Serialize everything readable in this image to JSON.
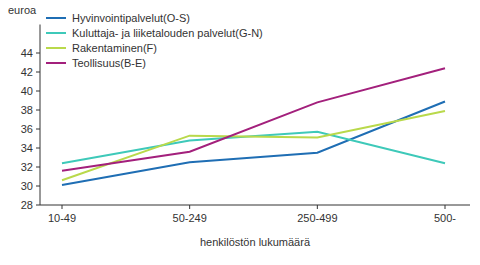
{
  "chart_data": {
    "type": "line",
    "y_label": "euroa",
    "x_label": "henkilöstön lukumäärä",
    "categories": [
      "10-49",
      "50-249",
      "250-499",
      "500-"
    ],
    "series": [
      {
        "name": "Hyvinvointipalvelut(O-S)",
        "color": "#1f6eb4",
        "values": [
          30.1,
          32.5,
          33.5,
          38.9
        ]
      },
      {
        "name": "Kuluttaja- ja liiketalouden palvelut(G-N)",
        "color": "#3ec9b9",
        "values": [
          32.4,
          34.8,
          35.7,
          32.4
        ]
      },
      {
        "name": "Rakentaminen(F)",
        "color": "#b9d94b",
        "values": [
          30.6,
          35.3,
          35.1,
          37.9
        ]
      },
      {
        "name": "Teollisuus(B-E)",
        "color": "#a3207c",
        "values": [
          31.6,
          33.6,
          38.8,
          42.4
        ]
      }
    ],
    "ylim": [
      28,
      47
    ],
    "yticks": [
      28,
      30,
      32,
      34,
      36,
      38,
      40,
      42,
      44
    ],
    "grid": false,
    "legend": "top-left"
  }
}
